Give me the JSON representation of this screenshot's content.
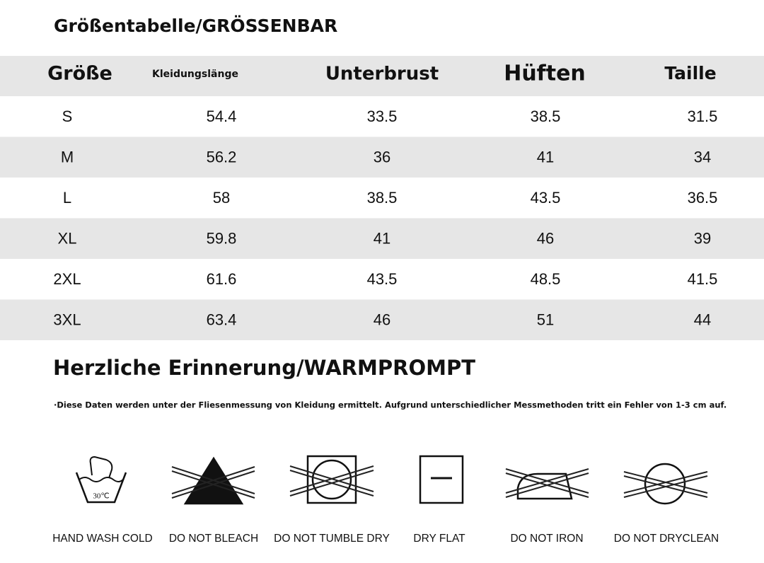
{
  "header": {
    "title": "Größentabelle/GRÖSSENBAR"
  },
  "table": {
    "columns": [
      "Größe",
      "Kleidungslänge",
      "Unterbrust",
      "Hüften",
      "Taille"
    ],
    "rows": [
      [
        "S",
        "54.4",
        "33.5",
        "38.5",
        "31.5"
      ],
      [
        "M",
        "56.2",
        "36",
        "41",
        "34"
      ],
      [
        "L",
        "58",
        "38.5",
        "43.5",
        "36.5"
      ],
      [
        "XL",
        "59.8",
        "41",
        "46",
        "39"
      ],
      [
        "2XL",
        "61.6",
        "43.5",
        "48.5",
        "41.5"
      ],
      [
        "3XL",
        "63.4",
        "46",
        "51",
        "44"
      ]
    ]
  },
  "notice": {
    "title": "Herzliche Erinnerung/WARMPROMPT",
    "text": "·Diese Daten werden unter der Fliesenmessung von Kleidung ermittelt. Aufgrund unterschiedlicher Messmethoden tritt ein Fehler von 1-3 cm auf."
  },
  "care": {
    "temperature": "30℃",
    "labels": [
      "HAND WASH COLD",
      "DO NOT BLEACH",
      "DO NOT TUMBLE DRY",
      "DRY FLAT",
      "DO NOT IRON",
      "DO NOT DRYCLEAN"
    ]
  }
}
